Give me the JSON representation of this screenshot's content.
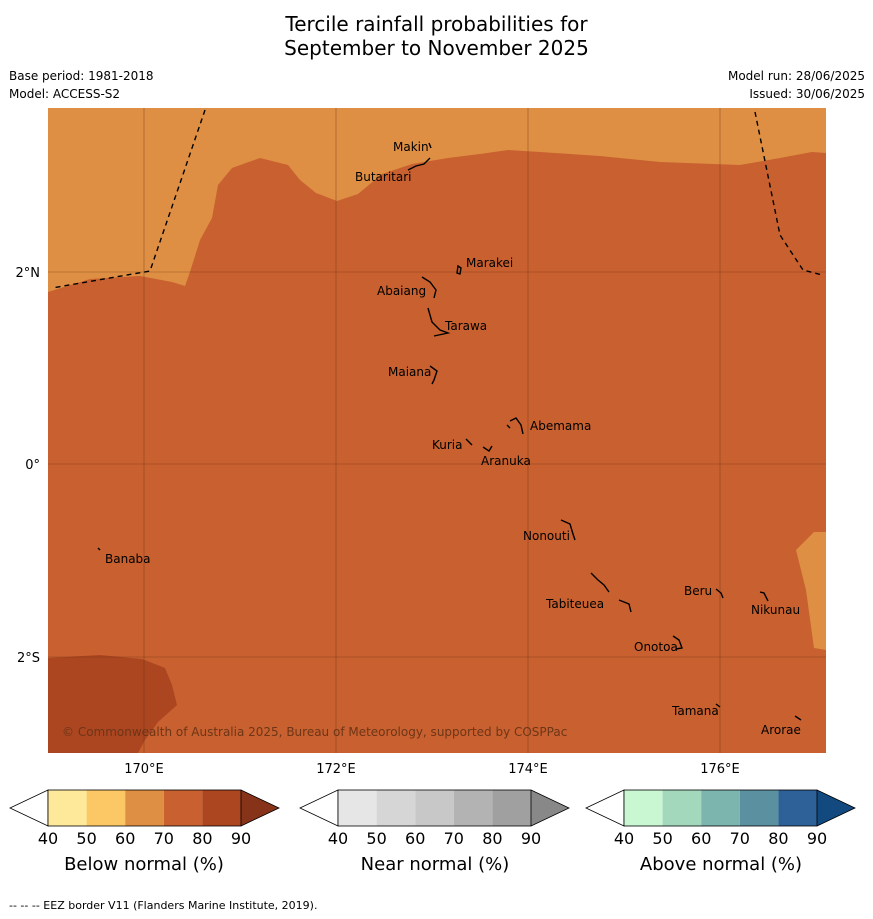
{
  "title": {
    "line1": "Tercile rainfall probabilities for",
    "line2": "September to November 2025"
  },
  "meta": {
    "base_period": "Base period: 1981-2018",
    "model": "Model: ACCESS-S2",
    "model_run": "Model run: 28/06/2025",
    "issued": "Issued: 30/06/2025"
  },
  "map": {
    "lat_labels": [
      "2°N",
      "0°",
      "2°S"
    ],
    "lon_labels": [
      "170°E",
      "172°E",
      "174°E",
      "176°E"
    ],
    "copyright": "© Commonwealth of Australia 2025, Bureau of Meteorology, supported by COSPPac",
    "places": {
      "makin": "Makin",
      "butaritari": "Butaritari",
      "marakei": "Marakei",
      "abaiang": "Abaiang",
      "tarawa": "Tarawa",
      "maiana": "Maiana",
      "abemama": "Abemama",
      "kuria": "Kuria",
      "aranuka": "Aranuka",
      "nonouti": "Nonouti",
      "banaba": "Banaba",
      "beru": "Beru",
      "nikunau": "Nikunau",
      "tabiteuea": "Tabiteuea",
      "onotoa": "Onotoa",
      "tamana": "Tamana",
      "arorae": "Arorae"
    }
  },
  "colorbars": {
    "ticks": [
      "40",
      "50",
      "60",
      "70",
      "80",
      "90"
    ],
    "below": {
      "label": "Below normal (%)",
      "colors": [
        "#ffffff",
        "#fee99b",
        "#fcc865",
        "#de8f43",
        "#c8602f",
        "#ab4621",
        "#87331a"
      ]
    },
    "near": {
      "label": "Near normal (%)",
      "colors": [
        "#ffffff",
        "#e6e6e6",
        "#d6d6d6",
        "#c8c8c8",
        "#b3b3b3",
        "#a0a0a0",
        "#888888"
      ]
    },
    "above": {
      "label": "Above normal (%)",
      "colors": [
        "#ffffff",
        "#c8f7d2",
        "#a3d8bd",
        "#7bb5ae",
        "#5a90a0",
        "#2d6197",
        "#124a80"
      ]
    }
  },
  "footer": "--  --  -- EEZ border V11 (Flanders Marine Institute, 2019)."
}
